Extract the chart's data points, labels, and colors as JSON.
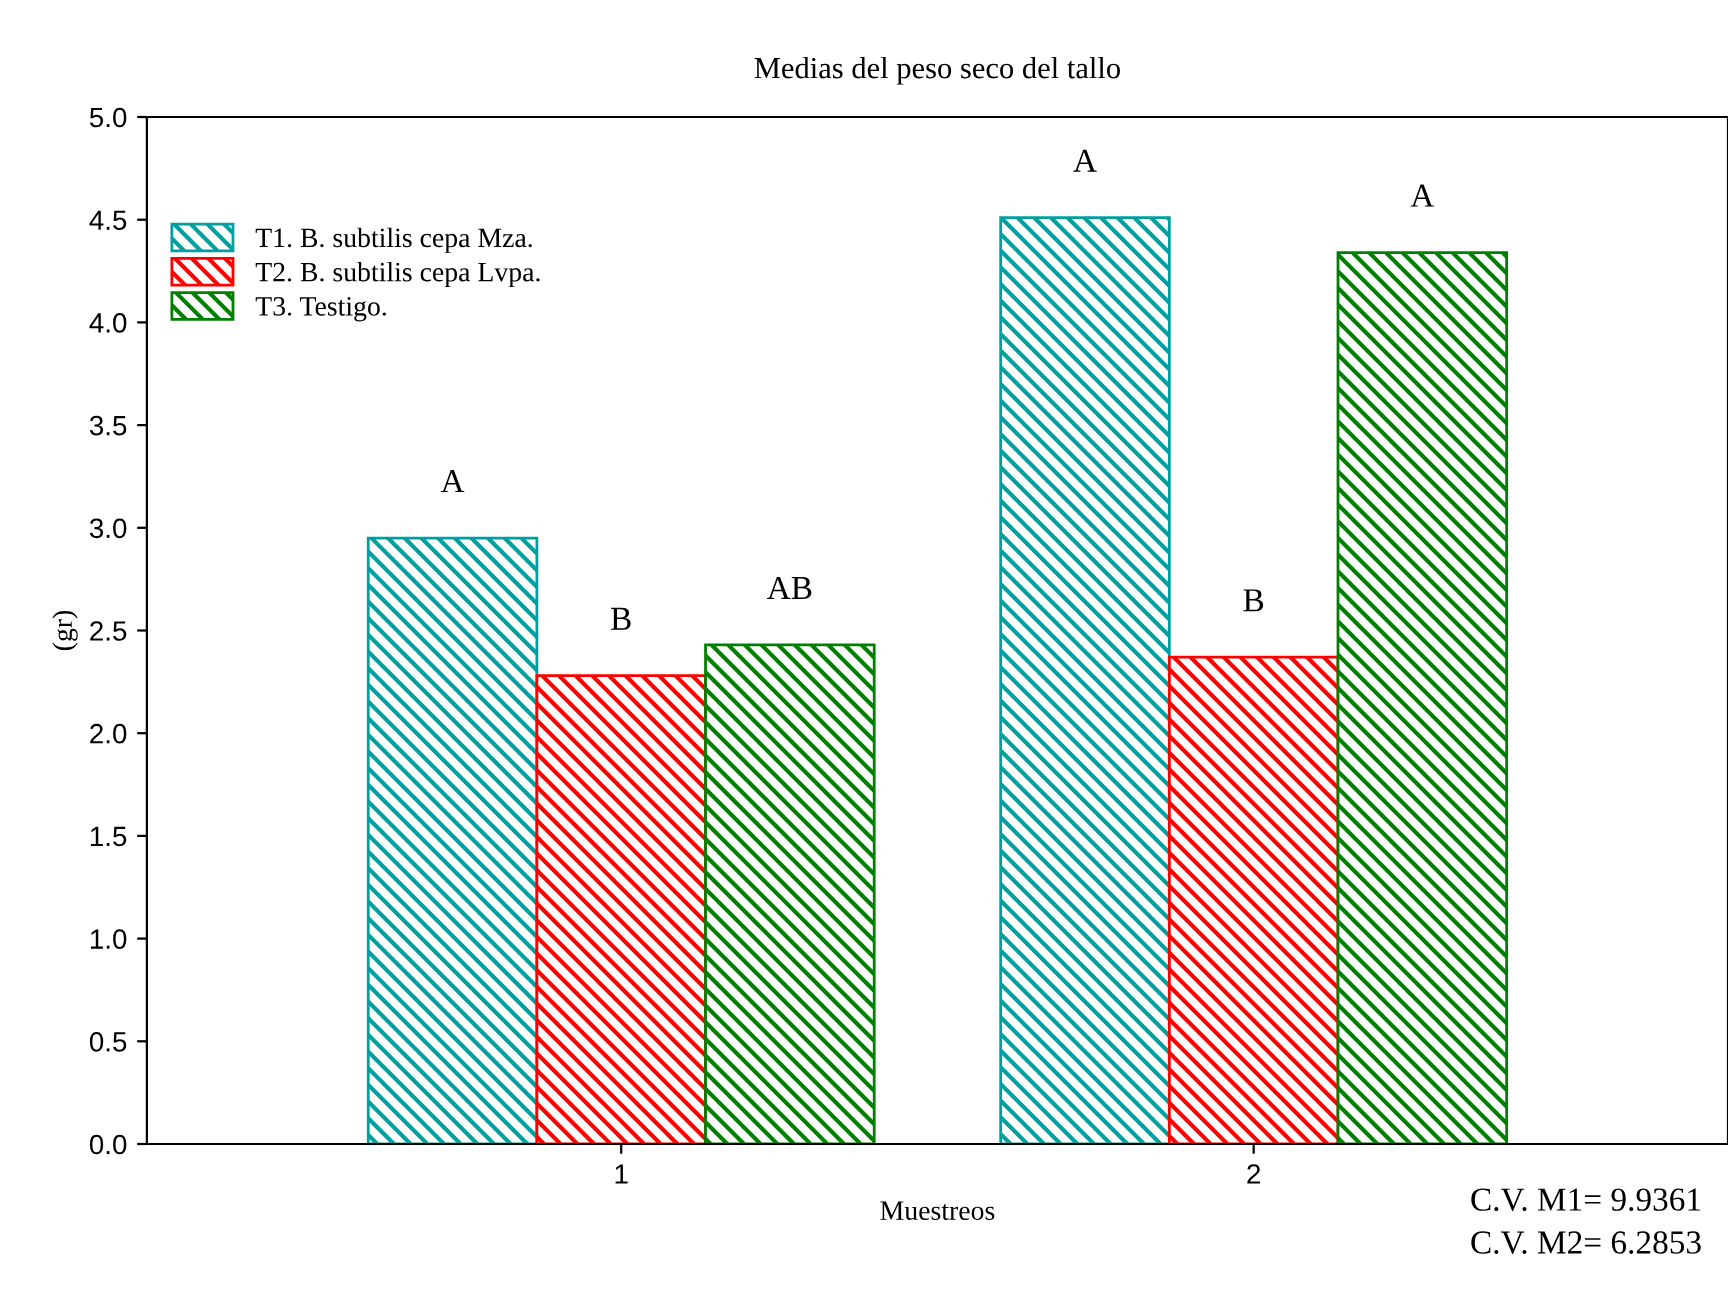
{
  "chart_data": {
    "type": "bar",
    "title": "Medias del peso seco del tallo",
    "xlabel": "Muestreos",
    "ylabel": "(gr)",
    "categories": [
      "1",
      "2"
    ],
    "series": [
      {
        "name": "T1. B. subtilis cepa Mza.",
        "color": "#00a0a0",
        "values": [
          2.95,
          4.51
        ],
        "value_labels": [
          "A",
          "A"
        ]
      },
      {
        "name": "T2. B. subtilis cepa Lvpa.",
        "color": "#ff0000",
        "values": [
          2.28,
          2.37
        ],
        "value_labels": [
          "B",
          "B"
        ]
      },
      {
        "name": "T3. Testigo.",
        "color": "#008000",
        "values": [
          2.43,
          4.34
        ],
        "value_labels": [
          "AB",
          "A"
        ]
      }
    ],
    "ylim": [
      0,
      5
    ],
    "yticks": [
      {
        "value": 0,
        "label": "0.0"
      },
      0.5,
      {
        "value": 1,
        "label": "1.0"
      },
      1.5,
      {
        "value": 2,
        "label": "2.0"
      },
      2.5,
      {
        "value": 3,
        "label": "3.0"
      },
      3.5,
      {
        "value": 4,
        "label": "4.0"
      },
      4.5,
      {
        "value": 5,
        "label": "5.0"
      }
    ],
    "grid": false,
    "legend": "top left",
    "annotations": [
      "C.V. M1= 9.9361",
      "C.V. M2= 6.2853"
    ]
  }
}
